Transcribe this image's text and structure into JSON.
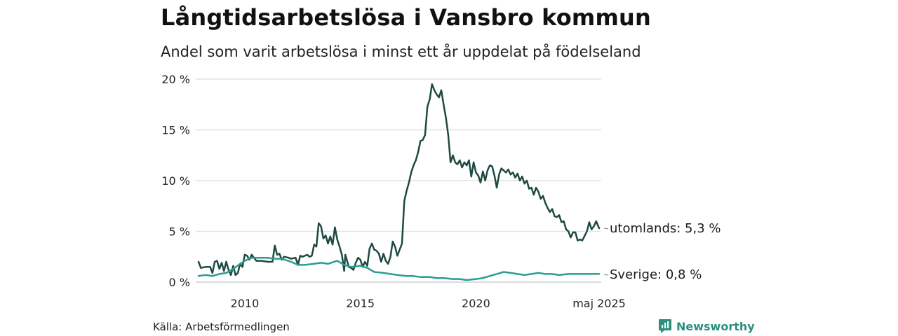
{
  "title": "Långtidsarbetslösa i Vansbro kommun",
  "subtitle": "Andel som varit arbetslösa i minst ett år uppdelat på födelseland",
  "source": "Källa: Arbetsförmedlingen",
  "brand": {
    "name": "Newsworthy",
    "icon": "newsworthy-logo-icon",
    "color": "#2b8f7f"
  },
  "chart_data": {
    "type": "line",
    "title": "Långtidsarbetslösa i Vansbro kommun",
    "subtitle": "Andel som varit arbetslösa i minst ett år uppdelat på födelseland",
    "xlabel": "",
    "ylabel": "",
    "xlim": [
      2008.0,
      2025.42
    ],
    "ylim": [
      0,
      20
    ],
    "grid": "horizontal",
    "legend": "line-end labels",
    "x_ticks": [
      {
        "value": 2010,
        "label": "2010"
      },
      {
        "value": 2015,
        "label": "2015"
      },
      {
        "value": 2020,
        "label": "2020"
      },
      {
        "value": 2025.33,
        "label": "maj 2025"
      }
    ],
    "y_ticks": [
      {
        "value": 0,
        "label": "0 %"
      },
      {
        "value": 5,
        "label": "5 %"
      },
      {
        "value": 10,
        "label": "10 %"
      },
      {
        "value": 15,
        "label": "15 %"
      },
      {
        "value": 20,
        "label": "20 %"
      }
    ],
    "series": [
      {
        "name": "utomlands",
        "color": "#1f4a44",
        "end_label": "utomlands: 5,3 %",
        "points": [
          [
            2008.0,
            2.0
          ],
          [
            2008.1,
            1.4
          ],
          [
            2008.3,
            1.5
          ],
          [
            2008.5,
            1.5
          ],
          [
            2008.6,
            0.9
          ],
          [
            2008.7,
            2.0
          ],
          [
            2008.8,
            2.1
          ],
          [
            2008.9,
            1.3
          ],
          [
            2009.0,
            1.9
          ],
          [
            2009.1,
            1.1
          ],
          [
            2009.2,
            2.0
          ],
          [
            2009.3,
            1.2
          ],
          [
            2009.4,
            0.7
          ],
          [
            2009.5,
            1.6
          ],
          [
            2009.6,
            0.7
          ],
          [
            2009.7,
            0.9
          ],
          [
            2009.8,
            1.8
          ],
          [
            2009.9,
            1.5
          ],
          [
            2010.0,
            2.7
          ],
          [
            2010.1,
            2.6
          ],
          [
            2010.2,
            2.2
          ],
          [
            2010.3,
            2.7
          ],
          [
            2010.5,
            2.1
          ],
          [
            2010.7,
            2.1
          ],
          [
            2011.0,
            2.0
          ],
          [
            2011.2,
            2.0
          ],
          [
            2011.3,
            3.6
          ],
          [
            2011.4,
            2.7
          ],
          [
            2011.5,
            2.8
          ],
          [
            2011.6,
            2.2
          ],
          [
            2011.7,
            2.5
          ],
          [
            2011.9,
            2.4
          ],
          [
            2012.0,
            2.3
          ],
          [
            2012.2,
            2.4
          ],
          [
            2012.3,
            1.7
          ],
          [
            2012.4,
            2.6
          ],
          [
            2012.5,
            2.5
          ],
          [
            2012.7,
            2.7
          ],
          [
            2012.8,
            2.5
          ],
          [
            2012.9,
            2.6
          ],
          [
            2013.0,
            3.7
          ],
          [
            2013.1,
            3.5
          ],
          [
            2013.2,
            5.8
          ],
          [
            2013.3,
            5.5
          ],
          [
            2013.4,
            4.3
          ],
          [
            2013.5,
            4.6
          ],
          [
            2013.6,
            3.8
          ],
          [
            2013.7,
            4.5
          ],
          [
            2013.8,
            3.7
          ],
          [
            2013.9,
            5.4
          ],
          [
            2014.0,
            4.2
          ],
          [
            2014.1,
            3.5
          ],
          [
            2014.2,
            2.7
          ],
          [
            2014.3,
            1.1
          ],
          [
            2014.35,
            2.7
          ],
          [
            2014.4,
            2.3
          ],
          [
            2014.5,
            1.5
          ],
          [
            2014.6,
            1.4
          ],
          [
            2014.7,
            1.2
          ],
          [
            2014.8,
            1.9
          ],
          [
            2014.9,
            2.4
          ],
          [
            2015.0,
            2.2
          ],
          [
            2015.1,
            1.5
          ],
          [
            2015.2,
            2.0
          ],
          [
            2015.3,
            1.6
          ],
          [
            2015.4,
            3.3
          ],
          [
            2015.5,
            3.8
          ],
          [
            2015.6,
            3.2
          ],
          [
            2015.7,
            3.1
          ],
          [
            2015.8,
            2.8
          ],
          [
            2015.9,
            2.0
          ],
          [
            2016.0,
            2.8
          ],
          [
            2016.1,
            2.1
          ],
          [
            2016.2,
            1.8
          ],
          [
            2016.3,
            2.5
          ],
          [
            2016.4,
            4.0
          ],
          [
            2016.5,
            3.5
          ],
          [
            2016.6,
            2.6
          ],
          [
            2016.7,
            3.2
          ],
          [
            2016.8,
            3.8
          ],
          [
            2016.9,
            8.0
          ],
          [
            2017.0,
            9.0
          ],
          [
            2017.1,
            9.8
          ],
          [
            2017.2,
            10.8
          ],
          [
            2017.3,
            11.5
          ],
          [
            2017.4,
            12.0
          ],
          [
            2017.5,
            12.8
          ],
          [
            2017.6,
            13.9
          ],
          [
            2017.7,
            14.0
          ],
          [
            2017.8,
            14.5
          ],
          [
            2017.9,
            17.3
          ],
          [
            2018.0,
            18.0
          ],
          [
            2018.1,
            19.5
          ],
          [
            2018.2,
            18.9
          ],
          [
            2018.3,
            18.5
          ],
          [
            2018.4,
            18.2
          ],
          [
            2018.5,
            18.9
          ],
          [
            2018.6,
            17.5
          ],
          [
            2018.7,
            16.2
          ],
          [
            2018.8,
            14.5
          ],
          [
            2018.9,
            11.8
          ],
          [
            2019.0,
            12.5
          ],
          [
            2019.1,
            11.8
          ],
          [
            2019.2,
            11.6
          ],
          [
            2019.3,
            12.0
          ],
          [
            2019.4,
            11.3
          ],
          [
            2019.5,
            11.8
          ],
          [
            2019.6,
            11.5
          ],
          [
            2019.7,
            12.0
          ],
          [
            2019.8,
            10.4
          ],
          [
            2019.9,
            11.8
          ],
          [
            2020.0,
            10.8
          ],
          [
            2020.1,
            10.5
          ],
          [
            2020.2,
            9.8
          ],
          [
            2020.3,
            10.9
          ],
          [
            2020.4,
            10.0
          ],
          [
            2020.5,
            11.0
          ],
          [
            2020.6,
            11.5
          ],
          [
            2020.7,
            11.4
          ],
          [
            2020.8,
            10.5
          ],
          [
            2020.9,
            9.3
          ],
          [
            2021.0,
            10.6
          ],
          [
            2021.1,
            11.2
          ],
          [
            2021.2,
            11.0
          ],
          [
            2021.3,
            10.8
          ],
          [
            2021.4,
            11.1
          ],
          [
            2021.5,
            10.6
          ],
          [
            2021.6,
            10.8
          ],
          [
            2021.7,
            10.3
          ],
          [
            2021.8,
            10.7
          ],
          [
            2021.9,
            10.0
          ],
          [
            2022.0,
            10.4
          ],
          [
            2022.1,
            9.7
          ],
          [
            2022.2,
            10.0
          ],
          [
            2022.3,
            9.2
          ],
          [
            2022.4,
            9.3
          ],
          [
            2022.5,
            8.6
          ],
          [
            2022.6,
            9.3
          ],
          [
            2022.7,
            8.9
          ],
          [
            2022.8,
            8.2
          ],
          [
            2022.9,
            8.5
          ],
          [
            2023.0,
            7.8
          ],
          [
            2023.1,
            7.3
          ],
          [
            2023.2,
            6.9
          ],
          [
            2023.3,
            7.2
          ],
          [
            2023.4,
            6.5
          ],
          [
            2023.5,
            6.4
          ],
          [
            2023.6,
            6.6
          ],
          [
            2023.7,
            5.9
          ],
          [
            2023.8,
            6.0
          ],
          [
            2023.9,
            5.2
          ],
          [
            2024.0,
            5.0
          ],
          [
            2024.1,
            4.4
          ],
          [
            2024.2,
            4.9
          ],
          [
            2024.3,
            4.9
          ],
          [
            2024.4,
            4.1
          ],
          [
            2024.5,
            4.2
          ],
          [
            2024.6,
            4.1
          ],
          [
            2024.8,
            5.0
          ],
          [
            2024.9,
            5.9
          ],
          [
            2025.0,
            5.2
          ],
          [
            2025.1,
            5.5
          ],
          [
            2025.2,
            6.0
          ],
          [
            2025.33,
            5.3
          ]
        ]
      },
      {
        "name": "Sverige",
        "color": "#2a9d8f",
        "end_label": "Sverige: 0,8 %",
        "points": [
          [
            2008.0,
            0.6
          ],
          [
            2008.3,
            0.7
          ],
          [
            2008.6,
            0.6
          ],
          [
            2008.9,
            0.8
          ],
          [
            2009.2,
            0.9
          ],
          [
            2009.5,
            1.3
          ],
          [
            2009.8,
            1.8
          ],
          [
            2010.0,
            2.1
          ],
          [
            2010.3,
            2.4
          ],
          [
            2010.6,
            2.4
          ],
          [
            2011.0,
            2.4
          ],
          [
            2011.3,
            2.3
          ],
          [
            2011.6,
            2.3
          ],
          [
            2012.0,
            2.0
          ],
          [
            2012.3,
            1.7
          ],
          [
            2012.6,
            1.7
          ],
          [
            2013.0,
            1.8
          ],
          [
            2013.3,
            1.9
          ],
          [
            2013.6,
            1.8
          ],
          [
            2014.0,
            2.1
          ],
          [
            2014.3,
            1.7
          ],
          [
            2014.6,
            1.5
          ],
          [
            2015.0,
            1.6
          ],
          [
            2015.3,
            1.4
          ],
          [
            2015.6,
            1.0
          ],
          [
            2016.0,
            0.9
          ],
          [
            2016.3,
            0.8
          ],
          [
            2016.6,
            0.7
          ],
          [
            2017.0,
            0.6
          ],
          [
            2017.3,
            0.6
          ],
          [
            2017.6,
            0.5
          ],
          [
            2018.0,
            0.5
          ],
          [
            2018.3,
            0.4
          ],
          [
            2018.6,
            0.4
          ],
          [
            2019.0,
            0.3
          ],
          [
            2019.3,
            0.3
          ],
          [
            2019.6,
            0.2
          ],
          [
            2020.0,
            0.3
          ],
          [
            2020.3,
            0.4
          ],
          [
            2020.6,
            0.6
          ],
          [
            2020.9,
            0.8
          ],
          [
            2021.2,
            1.0
          ],
          [
            2021.5,
            0.9
          ],
          [
            2021.8,
            0.8
          ],
          [
            2022.1,
            0.7
          ],
          [
            2022.4,
            0.8
          ],
          [
            2022.7,
            0.9
          ],
          [
            2023.0,
            0.8
          ],
          [
            2023.3,
            0.8
          ],
          [
            2023.6,
            0.7
          ],
          [
            2024.0,
            0.8
          ],
          [
            2024.3,
            0.8
          ],
          [
            2024.6,
            0.8
          ],
          [
            2025.0,
            0.8
          ],
          [
            2025.33,
            0.8
          ]
        ]
      }
    ]
  }
}
